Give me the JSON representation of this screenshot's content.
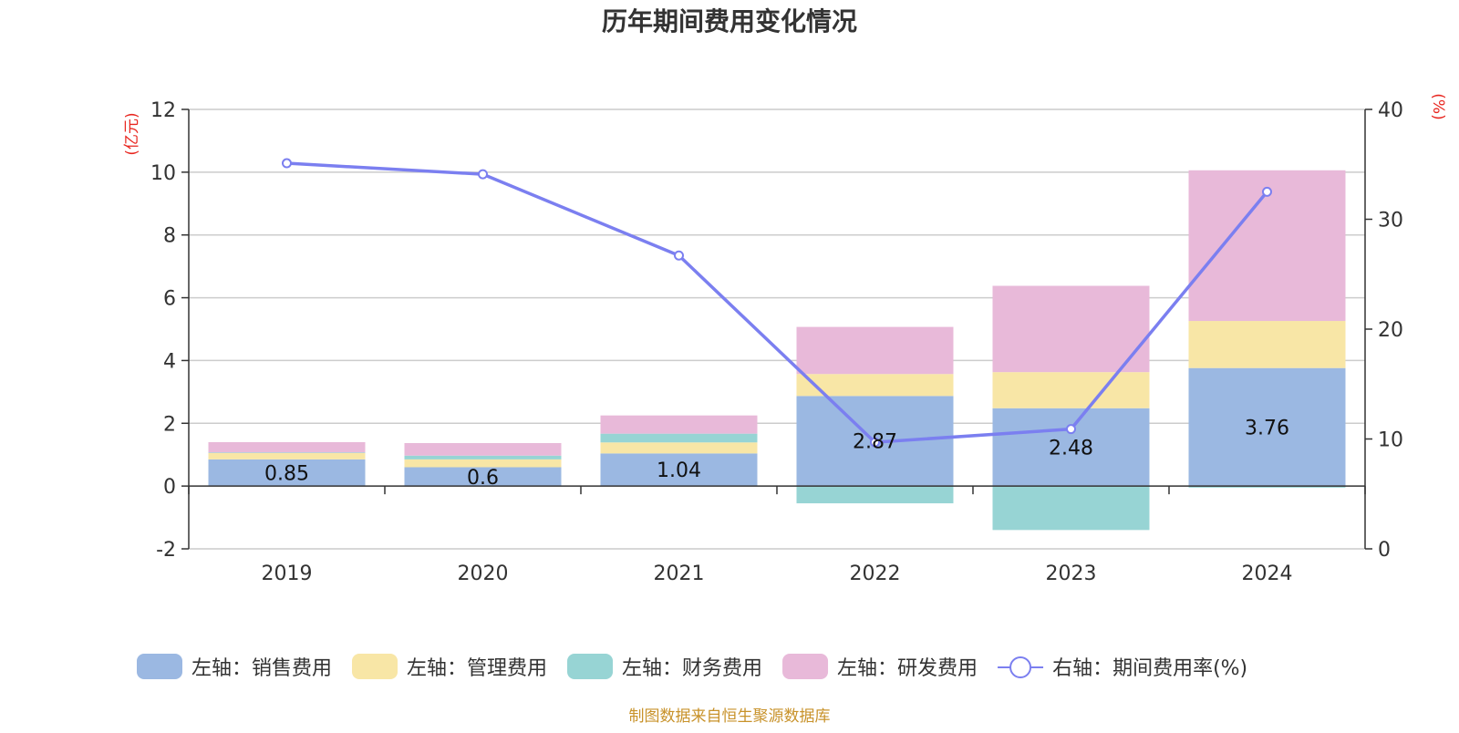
{
  "chart_data": {
    "type": "bar",
    "title": "历年期间费用变化情况",
    "categories": [
      "2019",
      "2020",
      "2021",
      "2022",
      "2023",
      "2024"
    ],
    "left_axis": {
      "unit": "(亿元)",
      "ylim": [
        -2,
        12
      ],
      "ticks": [
        -2,
        0,
        2,
        4,
        6,
        8,
        10,
        12
      ]
    },
    "right_axis": {
      "unit": "(%)",
      "ylim": [
        0,
        40
      ],
      "ticks": [
        0,
        10,
        20,
        30,
        40
      ]
    },
    "stacked": true,
    "series": [
      {
        "name": "左轴：销售费用",
        "axis": "left",
        "type": "bar",
        "color": "#9bb8e2",
        "values": [
          0.85,
          0.6,
          1.04,
          2.87,
          2.48,
          3.76
        ],
        "labels": [
          "0.85",
          "0.6",
          "1.04",
          "2.87",
          "2.48",
          "3.76"
        ]
      },
      {
        "name": "左轴：管理费用",
        "axis": "left",
        "type": "bar",
        "color": "#f8e6a6",
        "values": [
          0.2,
          0.25,
          0.35,
          0.7,
          1.15,
          1.5
        ]
      },
      {
        "name": "左轴：财务费用",
        "axis": "left",
        "type": "bar",
        "color": "#97d4d4",
        "values": [
          0.02,
          0.12,
          0.28,
          -0.55,
          -1.4,
          -0.05
        ]
      },
      {
        "name": "左轴：研发费用",
        "axis": "left",
        "type": "bar",
        "color": "#e8b9d9",
        "values": [
          0.33,
          0.4,
          0.58,
          1.5,
          2.75,
          4.8
        ]
      },
      {
        "name": "右轴：期间费用率(%)",
        "axis": "right",
        "type": "line",
        "color": "#7b7ff0",
        "values": [
          35.1,
          34.1,
          26.7,
          9.7,
          10.9,
          32.5
        ]
      }
    ],
    "grid": true,
    "legend": "bottom",
    "source": "制图数据来自恒生聚源数据库"
  }
}
